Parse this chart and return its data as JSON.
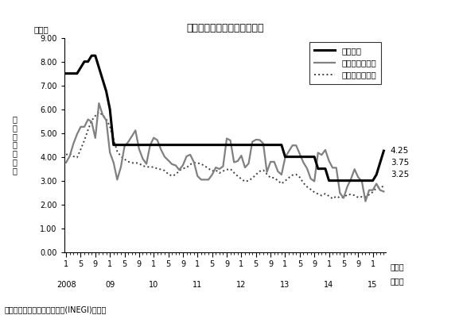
{
  "title": "政策金利とインフレ率の推移",
  "percent_label": "（％）",
  "ylabel_text": "中\n銀\n目\n標\nレ\nン\nジ",
  "source_label": "（出所）国立統計地理情報院(INEGI)、中銀",
  "month_label": "（月）",
  "year_label": "（年）",
  "ylim": [
    0.0,
    9.0
  ],
  "ytick_vals": [
    0.0,
    1.0,
    2.0,
    3.0,
    4.0,
    5.0,
    6.0,
    7.0,
    8.0,
    9.0
  ],
  "legend_labels": [
    "政策金利",
    "総合インフレ率",
    "コアインフレ率"
  ],
  "policy_rate": [
    7.5,
    7.5,
    7.5,
    7.5,
    7.75,
    8.0,
    8.0,
    8.25,
    8.25,
    7.75,
    7.25,
    6.75,
    6.0,
    4.5,
    4.5,
    4.5,
    4.5,
    4.5,
    4.5,
    4.5,
    4.5,
    4.5,
    4.5,
    4.5,
    4.5,
    4.5,
    4.5,
    4.5,
    4.5,
    4.5,
    4.5,
    4.5,
    4.5,
    4.5,
    4.5,
    4.5,
    4.5,
    4.5,
    4.5,
    4.5,
    4.5,
    4.5,
    4.5,
    4.5,
    4.5,
    4.5,
    4.5,
    4.5,
    4.5,
    4.5,
    4.5,
    4.5,
    4.5,
    4.5,
    4.5,
    4.5,
    4.5,
    4.5,
    4.5,
    4.5,
    4.0,
    4.0,
    4.0,
    4.0,
    4.0,
    4.0,
    4.0,
    4.0,
    4.0,
    3.5,
    3.5,
    3.5,
    3.0,
    3.0,
    3.0,
    3.0,
    3.0,
    3.0,
    3.0,
    3.0,
    3.0,
    3.0,
    3.0,
    3.0,
    3.0,
    3.25,
    3.75,
    4.25
  ],
  "total_inflation": [
    3.76,
    4.03,
    4.55,
    4.95,
    5.26,
    5.26,
    5.57,
    5.47,
    4.79,
    6.25,
    5.77,
    5.53,
    4.18,
    3.76,
    3.04,
    3.57,
    4.44,
    4.62,
    4.86,
    5.11,
    4.32,
    3.92,
    3.7,
    4.48,
    4.8,
    4.7,
    4.3,
    4.0,
    3.85,
    3.69,
    3.64,
    3.45,
    3.65,
    4.02,
    4.09,
    3.78,
    3.19,
    3.04,
    3.04,
    3.04,
    3.25,
    3.55,
    3.49,
    3.6,
    4.77,
    4.69,
    3.77,
    3.82,
    4.05,
    3.55,
    3.72,
    4.63,
    4.72,
    4.71,
    4.56,
    3.36,
    3.79,
    3.79,
    3.39,
    3.25,
    3.97,
    4.23,
    4.48,
    4.48,
    4.12,
    3.76,
    3.51,
    3.08,
    2.97,
    4.17,
    4.08,
    4.29,
    3.83,
    3.54,
    3.54,
    2.48,
    2.27,
    2.74,
    3.06,
    3.48,
    3.14,
    2.97,
    2.13,
    2.6,
    2.6,
    2.87,
    2.6,
    2.54
  ],
  "core_inflation": [
    4.09,
    4.14,
    4.02,
    3.97,
    4.31,
    4.69,
    5.13,
    5.52,
    5.72,
    5.88,
    5.75,
    5.58,
    5.27,
    4.73,
    4.23,
    4.02,
    3.9,
    3.8,
    3.74,
    3.75,
    3.72,
    3.62,
    3.58,
    3.57,
    3.57,
    3.5,
    3.47,
    3.42,
    3.27,
    3.2,
    3.25,
    3.42,
    3.51,
    3.54,
    3.68,
    3.75,
    3.74,
    3.7,
    3.61,
    3.51,
    3.4,
    3.44,
    3.32,
    3.4,
    3.46,
    3.49,
    3.33,
    3.19,
    3.07,
    2.96,
    3.0,
    3.1,
    3.25,
    3.39,
    3.44,
    3.27,
    3.12,
    3.12,
    3.0,
    2.87,
    2.99,
    3.12,
    3.23,
    3.26,
    3.14,
    2.9,
    2.74,
    2.63,
    2.51,
    2.44,
    2.37,
    2.45,
    2.35,
    2.24,
    2.34,
    2.28,
    2.29,
    2.41,
    2.42,
    2.38,
    2.29,
    2.32,
    2.31,
    2.41,
    2.52,
    2.69,
    2.72,
    2.76
  ],
  "annotations": [
    {
      "text": "4.25",
      "y": 4.25
    },
    {
      "text": "3.75",
      "y": 3.75
    },
    {
      "text": "3.25",
      "y": 3.25
    }
  ],
  "background_color": "#ffffff",
  "line_color_policy": "#000000",
  "line_color_total": "#808080",
  "line_color_core": "#404040",
  "start_year": 2008
}
